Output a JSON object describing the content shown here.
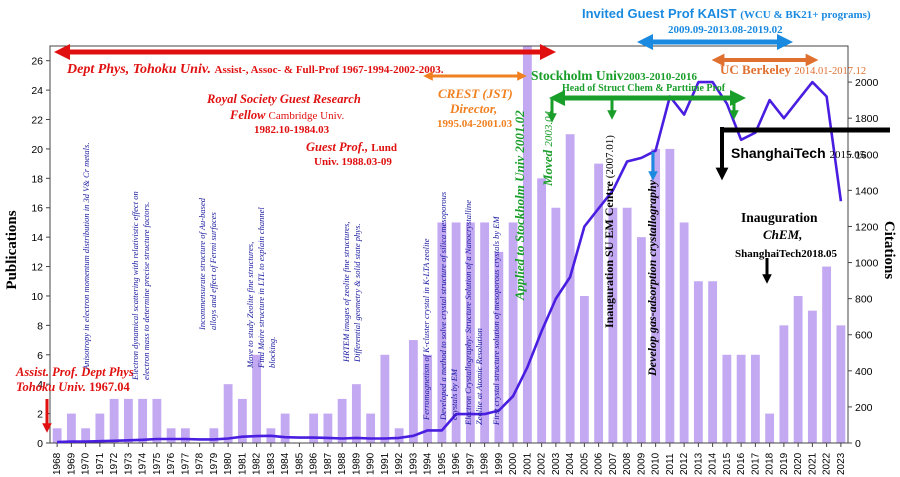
{
  "chart_data": {
    "type": "bar",
    "years": [
      "1968",
      "1969",
      "1970",
      "1971",
      "1972",
      "1973",
      "1974",
      "1975",
      "1976",
      "1977",
      "1978",
      "1979",
      "1980",
      "1981",
      "1982",
      "1983",
      "1984",
      "1985",
      "1986",
      "1987",
      "1988",
      "1989",
      "1990",
      "1991",
      "1992",
      "1993",
      "1994",
      "1995",
      "1996",
      "1997",
      "1998",
      "1999",
      "2000",
      "2001",
      "2002",
      "2003",
      "2004",
      "2005",
      "2006",
      "2007",
      "2008",
      "2009",
      "2010",
      "2011",
      "2012",
      "2013",
      "2014",
      "2015",
      "2016",
      "2017",
      "2018",
      "2019",
      "2020",
      "2021",
      "2022",
      "2023"
    ],
    "series": [
      {
        "name": "Publications",
        "axis": "left",
        "kind": "bar",
        "color": "#c3a9f2",
        "values": [
          1,
          2,
          1,
          2,
          3,
          3,
          3,
          3,
          1,
          1,
          0,
          1,
          4,
          3,
          6,
          1,
          2,
          0,
          2,
          2,
          3,
          4,
          2,
          6,
          1,
          7,
          6,
          15,
          15,
          15,
          15,
          13,
          15,
          27,
          18,
          16,
          21,
          10,
          19,
          16,
          16,
          14,
          20,
          20,
          15,
          11,
          11,
          6,
          6,
          6,
          2,
          8,
          10,
          9,
          12,
          8
        ]
      },
      {
        "name": "Citations",
        "axis": "right",
        "kind": "line",
        "color": "#4a1ee0",
        "values": [
          5,
          8,
          8,
          10,
          12,
          15,
          18,
          22,
          22,
          22,
          20,
          20,
          25,
          35,
          38,
          40,
          32,
          30,
          30,
          28,
          25,
          28,
          25,
          25,
          28,
          40,
          70,
          70,
          160,
          160,
          160,
          180,
          260,
          420,
          620,
          800,
          920,
          1200,
          1300,
          1400,
          1560,
          1580,
          1620,
          1920,
          1820,
          2000,
          2000,
          1880,
          1680,
          1720,
          1900,
          1800,
          1900,
          2000,
          1920,
          1340
        ]
      }
    ],
    "y_left": {
      "label": "Publications",
      "range": [
        0,
        27
      ],
      "ticks": [
        0,
        2,
        4,
        6,
        8,
        10,
        12,
        14,
        16,
        18,
        20,
        22,
        24,
        26
      ]
    },
    "y_right": {
      "label": "Citations",
      "range": [
        0,
        2200
      ],
      "ticks": [
        0,
        200,
        400,
        600,
        800,
        1000,
        1200,
        1400,
        1600,
        1800,
        2000
      ]
    },
    "annotations": [
      {
        "id": "tohoku",
        "text": "Dept Phys, Tohoku Univ.",
        "text2": "Assist-, Assoc- & Full-Prof 1967-1994-2002-2003.",
        "color": "#e01010"
      },
      {
        "id": "assist",
        "text": "Assist. Prof. Dept Phys",
        "text2": "Tohoku Univ. 1967.04",
        "color": "#e01010"
      },
      {
        "id": "royal",
        "text": "Royal Society Guest Research",
        "text2": "Fellow",
        "text3": "Cambridge Univ.",
        "text4": "1982.10-1984.03",
        "color": "#e01010"
      },
      {
        "id": "lund",
        "text": "Guest Prof.,",
        "text2": "Lund",
        "text3": "Univ.  1988.03-09",
        "color": "#e01010"
      },
      {
        "id": "crest",
        "text": "CREST (JST)",
        "text2": "Director,",
        "text3": "1995.04-2001.03",
        "color": "#f08020"
      },
      {
        "id": "stockholm",
        "text": "Stockholm Univ",
        "text2": "2003-2010-2016",
        "text3": "Head of Struct Chem & Parttime Prof",
        "color": "#1a9e2a"
      },
      {
        "id": "kaist",
        "text": "Invited Guest Prof  KAIST",
        "text2": "(WCU & BK21+ programs)",
        "text3": "2009.09-2013.08-2019.02",
        "color": "#1a8ae0"
      },
      {
        "id": "berkeley",
        "text": "UC Berkeley",
        "text2": "2014.01-2017.12",
        "color": "#e07030"
      },
      {
        "id": "shanghai",
        "text": "ShanghaiTech",
        "text2": "2015.05",
        "color": "#000000"
      },
      {
        "id": "inaug",
        "text": "Inauguration",
        "text2": "ChEM,",
        "text3": "ShanghaiTech2018.05",
        "color": "#000000"
      }
    ],
    "vertical_notes": [
      {
        "text": "Anisotropy in electron  momentum distribution in 3d V& Cr metals.",
        "color": "#1a1aa0"
      },
      {
        "text": "Electron dynamical scattering with relativistic effect on",
        "text2": "electron mass to determine precise structure factors.",
        "color": "#1a1aa0"
      },
      {
        "text": "Incommensurate structure of Au-based",
        "text2": "alloys and effect of Fermi surfaces",
        "color": "#1a1aa0"
      },
      {
        "text": "Move to study Zeolite fine structures,",
        "text2": "Find Moire structure in LTL to explain channel",
        "text3": "blocking.",
        "color": "#1a1aa0"
      },
      {
        "text": "HRTEM images of zeolite fine structures,",
        "text2": "Differential geometry & solid state phys.",
        "color": "#1a1aa0"
      },
      {
        "text": "Ferromagnetism of K-cluster crystal in K-LTA zeolite",
        "color": "#1a1aa0"
      },
      {
        "text": "Developed a method to solve crystal structure of silica mesoporous",
        "text2": "crystals by EM",
        "color": "#1a1aa0"
      },
      {
        "text": "Electron Crystallography: Structure Solution of a Nanocrystalline",
        "text2": "Zeolite at Atomic Resolution",
        "color": "#1a1aa0"
      },
      {
        "text": "First crystal structure solution of mesoporous crystals by EM",
        "color": "#1a1aa0"
      },
      {
        "text": "Applied to Stockholm Univ 2001.02",
        "color": "#1a9e2a"
      },
      {
        "text": "Moved",
        "text2": "2003.04",
        "color": "#1a9e2a"
      },
      {
        "text": "Inauguration SU EM Centre",
        "text2": "(2007.01)",
        "color": "#000000"
      },
      {
        "text": "Develop gas-adsorption crystallography",
        "color": "#000000"
      }
    ]
  }
}
